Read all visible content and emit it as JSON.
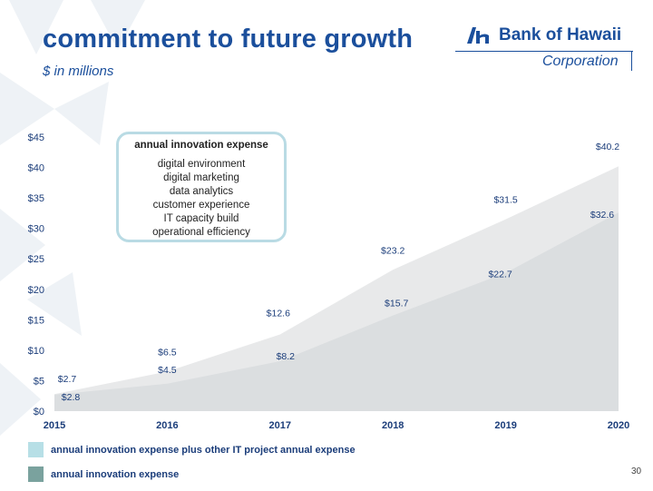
{
  "header": {
    "title": "commitment to future growth",
    "subtitle": "$ in millions"
  },
  "logo": {
    "wordmark": "Bank of Hawaii",
    "subline": "Corporation"
  },
  "callout": {
    "title": "annual innovation expense",
    "items": [
      "digital environment",
      "digital marketing",
      "data analytics",
      "customer experience",
      "IT capacity build",
      "operational efficiency"
    ]
  },
  "colors": {
    "brand": "#1b4f9c",
    "outer_area": "#e8e9ea",
    "inner_area": "#dbdee0",
    "legend_outer": "#b7dfe6",
    "legend_inner": "#7aa29e"
  },
  "page_number": "30",
  "chart_data": {
    "type": "area",
    "x": [
      "2015",
      "2016",
      "2017",
      "2018",
      "2019",
      "2020"
    ],
    "series": [
      {
        "name": "annual innovation expense plus other IT project annual expense",
        "values": [
          2.8,
          6.5,
          12.6,
          23.2,
          31.5,
          40.2
        ],
        "labels": [
          "$2.8",
          "$6.5",
          "$12.6",
          "$23.2",
          "$31.5",
          "$40.2"
        ]
      },
      {
        "name": "annual innovation expense",
        "values": [
          2.7,
          4.5,
          8.2,
          15.7,
          22.7,
          32.6
        ],
        "labels": [
          "$2.7",
          "$4.5",
          "$8.2",
          "$15.7",
          "$22.7",
          "$32.6"
        ]
      }
    ],
    "yticks": [
      "$0",
      "$5",
      "$10",
      "$15",
      "$20",
      "$25",
      "$30",
      "$35",
      "$40",
      "$45"
    ],
    "ylim": [
      0,
      45
    ],
    "grid": false,
    "legend_position": "bottom-left"
  }
}
